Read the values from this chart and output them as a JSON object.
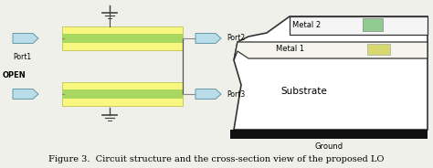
{
  "fig_width": 4.74,
  "fig_height": 1.84,
  "dpi": 100,
  "bg_color": "#f0f0eb",
  "caption": "Figure 3.  Circuit structure and the cross-section view of the proposed LO",
  "caption_fontsize": 7.0,
  "strip_yellow": "#f8f880",
  "strip_green": "#a8d860",
  "port_color": "#b8dce8",
  "port_border": "#6699aa",
  "metal2_box_color": "#90cc90",
  "metal1_box_color": "#d8d870",
  "port1_label": "Port1",
  "port2_label": "Port2",
  "port3_label": "Port3",
  "open_label": "OPEN",
  "metal2_label": "Metal 2",
  "metal1_label": "Metal 1",
  "substrate_label": "Substrate",
  "ground_label": "Ground"
}
